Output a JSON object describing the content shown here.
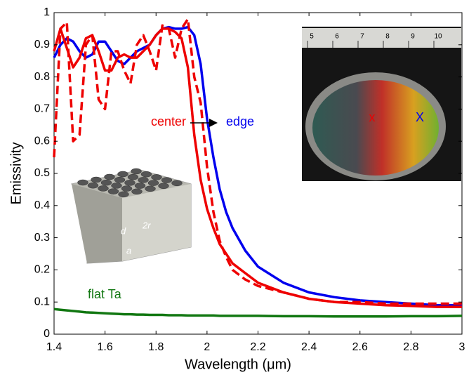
{
  "chart_data": {
    "type": "line",
    "x_label": "Wavelength (μm)",
    "y_label": "Emissivity",
    "xlim": [
      1.4,
      3
    ],
    "ylim": [
      0,
      1
    ],
    "xticks": [
      1.4,
      1.6,
      1.8,
      2,
      2.2,
      2.4,
      2.6,
      2.8,
      3
    ],
    "yticks": [
      0,
      0.1,
      0.2,
      0.3,
      0.4,
      0.5,
      0.6,
      0.7,
      0.8,
      0.9,
      1
    ],
    "grid": false,
    "x": [
      1.4,
      1.425,
      1.45,
      1.475,
      1.5,
      1.525,
      1.55,
      1.575,
      1.6,
      1.625,
      1.65,
      1.675,
      1.7,
      1.725,
      1.75,
      1.775,
      1.8,
      1.825,
      1.85,
      1.875,
      1.9,
      1.925,
      1.95,
      1.975,
      2.0,
      2.025,
      2.05,
      2.075,
      2.1,
      2.15,
      2.2,
      2.3,
      2.4,
      2.5,
      2.6,
      2.7,
      2.8,
      2.9,
      3.0
    ],
    "series": [
      {
        "name": "edge",
        "color": "#0000ee",
        "linestyle": "solid",
        "values": [
          0.86,
          0.9,
          0.92,
          0.91,
          0.88,
          0.86,
          0.87,
          0.91,
          0.91,
          0.88,
          0.85,
          0.84,
          0.86,
          0.88,
          0.89,
          0.9,
          0.93,
          0.95,
          0.955,
          0.95,
          0.95,
          0.955,
          0.93,
          0.84,
          0.67,
          0.55,
          0.45,
          0.38,
          0.33,
          0.26,
          0.21,
          0.16,
          0.13,
          0.115,
          0.105,
          0.1,
          0.095,
          0.09,
          0.09
        ]
      },
      {
        "name": "center",
        "color": "#ee0000",
        "linestyle": "solid",
        "values": [
          0.88,
          0.95,
          0.89,
          0.83,
          0.86,
          0.92,
          0.93,
          0.88,
          0.82,
          0.82,
          0.86,
          0.87,
          0.86,
          0.86,
          0.88,
          0.9,
          0.93,
          0.95,
          0.95,
          0.94,
          0.92,
          0.83,
          0.62,
          0.48,
          0.39,
          0.33,
          0.28,
          0.25,
          0.22,
          0.19,
          0.16,
          0.13,
          0.11,
          0.1,
          0.095,
          0.09,
          0.088,
          0.085,
          0.085
        ]
      },
      {
        "color": "#ee0000",
        "linestyle": "dashed",
        "values": [
          0.55,
          0.95,
          0.97,
          0.6,
          0.62,
          0.9,
          0.93,
          0.73,
          0.7,
          0.88,
          0.88,
          0.82,
          0.78,
          0.9,
          0.93,
          0.88,
          0.82,
          0.96,
          0.95,
          0.86,
          0.95,
          0.98,
          0.8,
          0.72,
          0.52,
          0.38,
          0.29,
          0.24,
          0.2,
          0.17,
          0.15,
          0.13,
          0.11,
          0.1,
          0.1,
          0.095,
          0.095,
          0.095,
          0.095
        ]
      },
      {
        "name": "flat Ta",
        "color": "#117711",
        "linestyle": "solid",
        "values": [
          0.078,
          0.076,
          0.074,
          0.072,
          0.07,
          0.068,
          0.067,
          0.066,
          0.065,
          0.064,
          0.063,
          0.062,
          0.062,
          0.061,
          0.061,
          0.06,
          0.06,
          0.06,
          0.059,
          0.059,
          0.059,
          0.058,
          0.058,
          0.058,
          0.058,
          0.058,
          0.057,
          0.057,
          0.057,
          0.057,
          0.057,
          0.056,
          0.056,
          0.055,
          0.055,
          0.055,
          0.056,
          0.056,
          0.057
        ]
      }
    ],
    "photo_inset": {
      "ruler_labels": [
        "5",
        "6",
        "7",
        "8",
        "9",
        "10"
      ],
      "markers": [
        {
          "label": "x",
          "color": "#ee0000"
        },
        {
          "label": "X",
          "color": "#0000ee"
        }
      ]
    },
    "diagram_inset": {
      "labels": [
        "d",
        "2r",
        "a"
      ]
    }
  }
}
